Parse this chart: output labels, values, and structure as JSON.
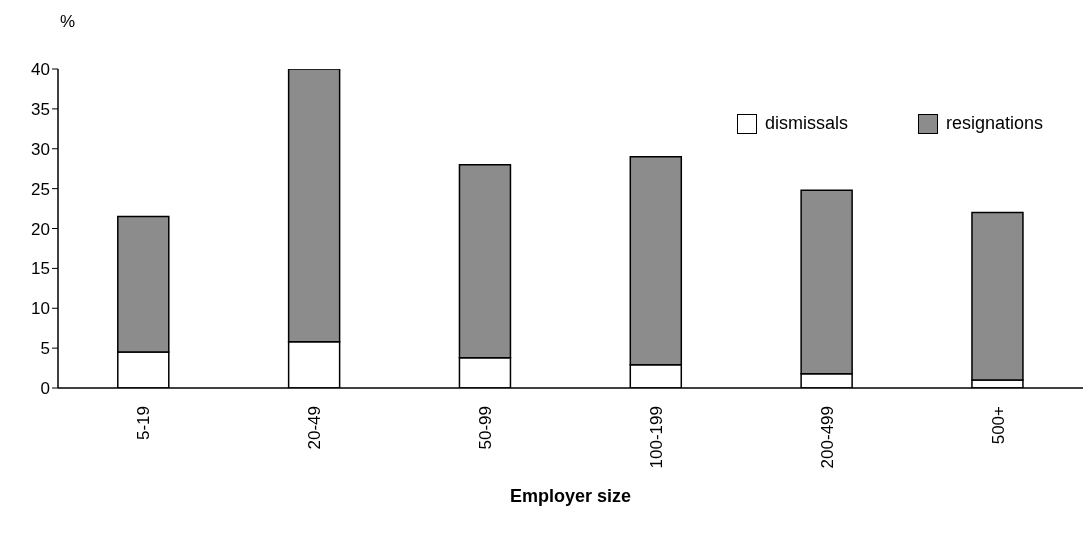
{
  "chart_data": {
    "type": "bar",
    "stacked": true,
    "ylabel": "%",
    "xlabel": "Employer size",
    "categories": [
      "5-19",
      "20-49",
      "50-99",
      "100-199",
      "200-499",
      "500+"
    ],
    "series": [
      {
        "name": "dismissals",
        "color": "#ffffff",
        "values": [
          4.5,
          5.8,
          3.8,
          2.9,
          1.8,
          1
        ]
      },
      {
        "name": "resignations",
        "color": "#8c8c8c",
        "values": [
          17,
          34.2,
          24.2,
          26.1,
          23,
          21
        ]
      }
    ],
    "ylim": [
      0,
      40
    ],
    "yticks": [
      0,
      5,
      10,
      15,
      20,
      25,
      30,
      35,
      40
    ],
    "legend": "top right"
  }
}
